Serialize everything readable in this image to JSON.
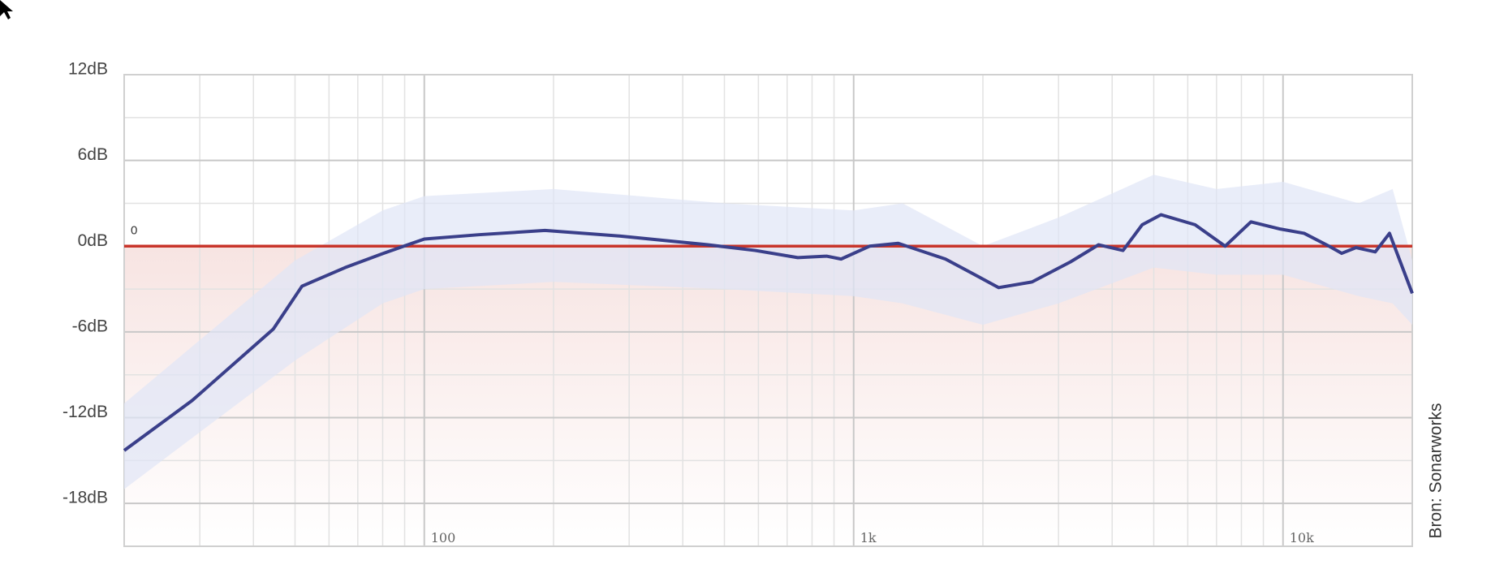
{
  "chart_data": {
    "type": "line",
    "log_x": true,
    "grid": true,
    "x": [
      20,
      28.8,
      44.5,
      51.9,
      65.4,
      80.3,
      100,
      133.8,
      191,
      288,
      457,
      590,
      741,
      865,
      935,
      1089,
      1270,
      1636,
      1916,
      2177,
      2605,
      3199,
      3720,
      4240,
      4700,
      5200,
      6240,
      7330,
      8420,
      9850,
      11200,
      12800,
      13700,
      14800,
      16400,
      17700,
      20000
    ],
    "series": [
      {
        "color": "#3a3f8a",
        "values": [
          -14.3,
          -10.8,
          -5.8,
          -2.8,
          -1.5,
          -0.5,
          0.5,
          0.8,
          1.1,
          0.7,
          0.1,
          -0.3,
          -0.8,
          -0.7,
          -0.9,
          0,
          0.2,
          -0.9,
          -2.0,
          -2.9,
          -2.5,
          -1.1,
          0.1,
          -0.3,
          1.5,
          2.2,
          1.5,
          0,
          1.7,
          1.2,
          0.9,
          0,
          -0.5,
          -0.1,
          -0.4,
          0.9,
          -3.3
        ]
      }
    ],
    "band": {
      "color": "#dfe5f6",
      "x": [
        20,
        50,
        80,
        100,
        200,
        500,
        1000,
        1300,
        2000,
        3000,
        5000,
        7000,
        10000,
        15000,
        18000,
        20000
      ],
      "upper": [
        -11,
        -1,
        2.5,
        3.5,
        4,
        3,
        2.5,
        3,
        0,
        2,
        5,
        4,
        4.5,
        3,
        4,
        -1
      ],
      "lower": [
        -17,
        -8,
        -4,
        -3,
        -2.5,
        -3,
        -3.5,
        -4,
        -5.5,
        -4,
        -1.5,
        -2,
        -2,
        -3.5,
        -4,
        -5.5
      ]
    },
    "reference": {
      "value": 0,
      "label": "0",
      "color": "#c8352b"
    },
    "xlim": [
      20,
      20000
    ],
    "ylim": [
      -21,
      12
    ],
    "xticks": [
      100,
      {
        "value": 1000,
        "label": "1k"
      },
      {
        "value": 10000,
        "label": "10k"
      }
    ],
    "yticks": [
      {
        "value": 12,
        "label": "12dB"
      },
      {
        "value": 6,
        "label": "6dB"
      },
      {
        "value": 0,
        "label": "0dB"
      },
      {
        "value": -6,
        "label": "-6dB"
      },
      {
        "value": -12,
        "label": "-12dB"
      },
      {
        "value": -18,
        "label": "-18dB"
      }
    ],
    "credit": "Bron: Sonarworks"
  }
}
